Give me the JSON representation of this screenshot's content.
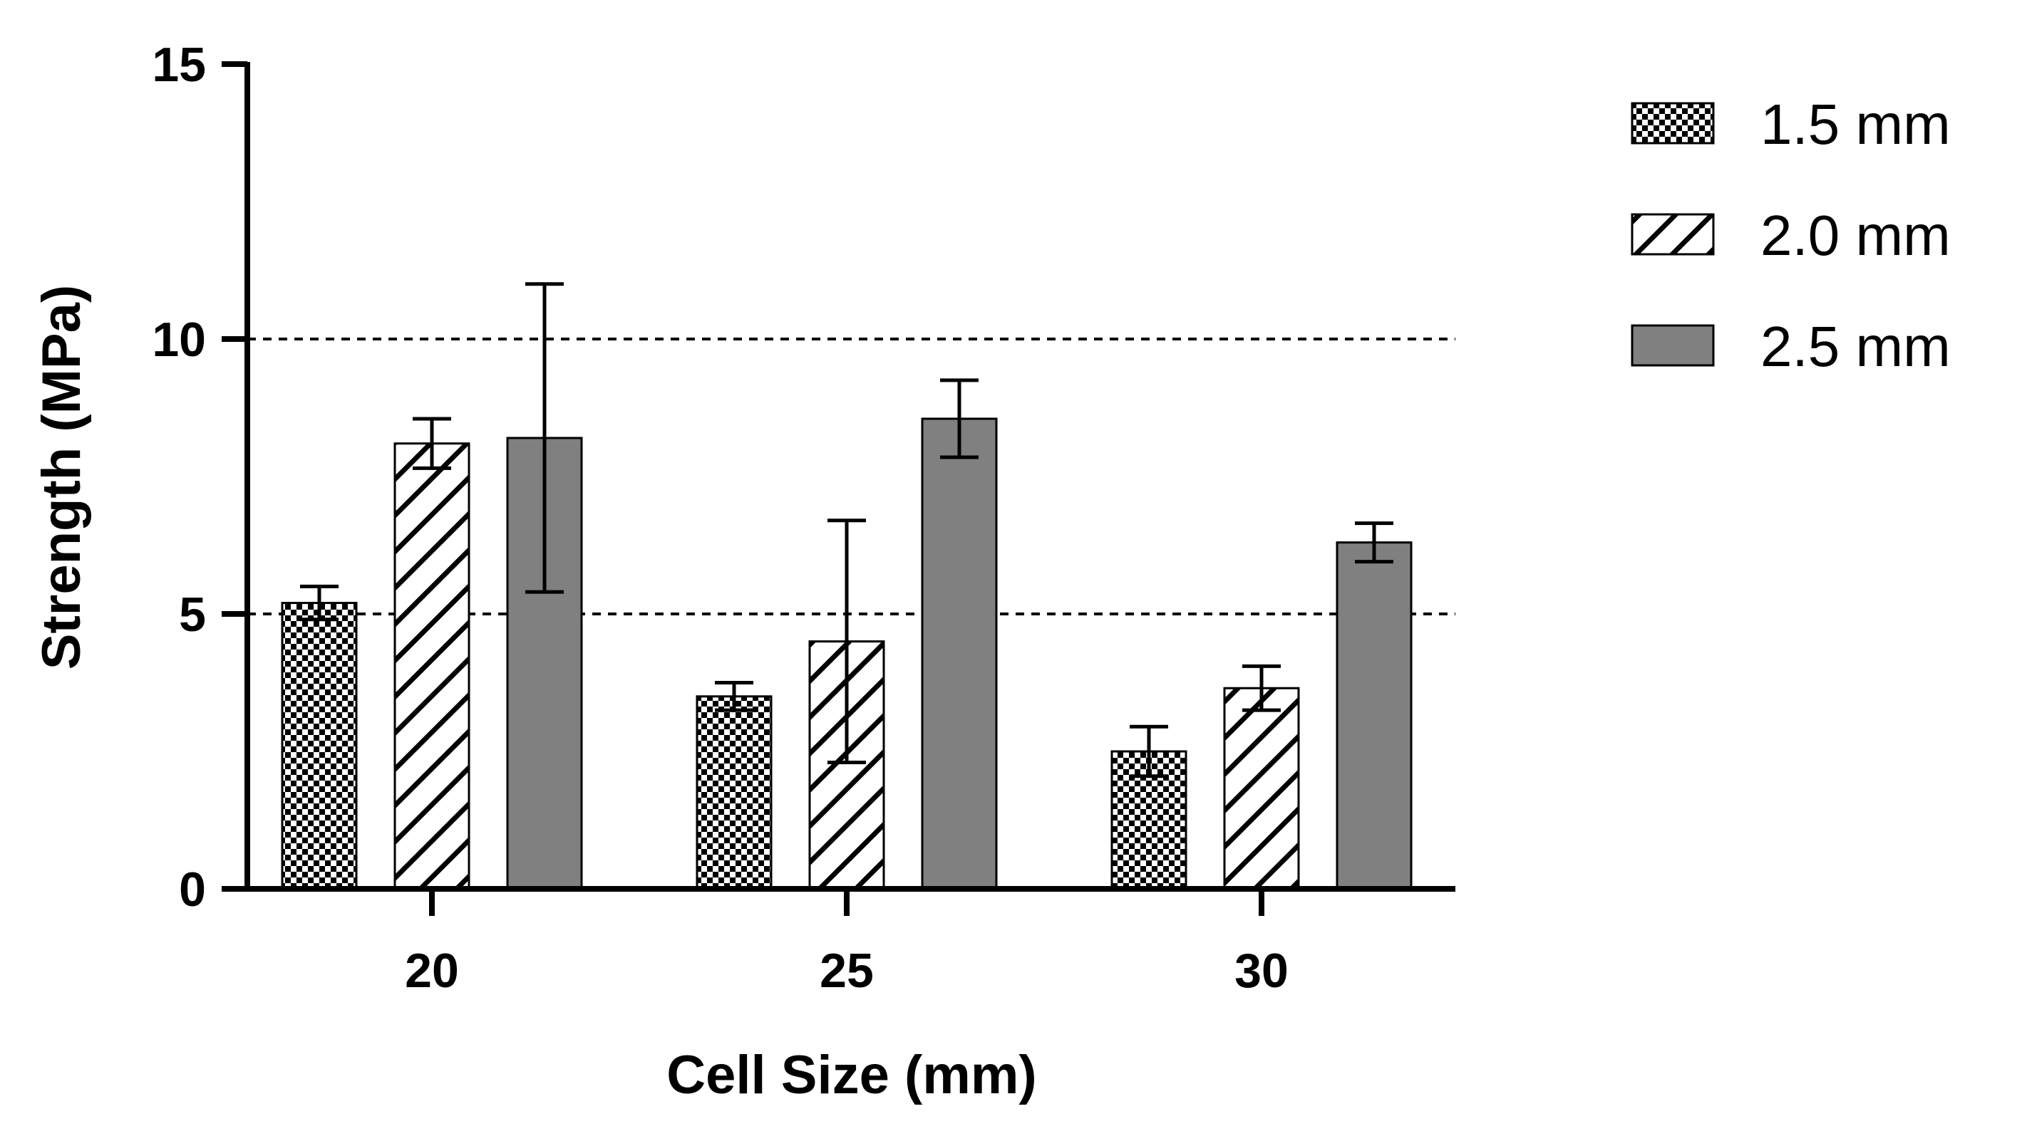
{
  "chart_data": {
    "type": "bar",
    "title": "",
    "xlabel": "Cell Size (mm)",
    "ylabel": "Strength (MPa)",
    "categories": [
      "20",
      "25",
      "30"
    ],
    "ylim": [
      0,
      15
    ],
    "yticks": [
      "0",
      "5",
      "10",
      "15"
    ],
    "reference_lines": [
      5,
      10
    ],
    "legend_position": "top-right",
    "series": [
      {
        "name": "1.5 mm",
        "pattern": "checkered",
        "color": "#000000",
        "values": [
          5.2,
          3.5,
          2.5
        ],
        "errors": [
          0.3,
          0.25,
          0.45
        ]
      },
      {
        "name": "2.0 mm",
        "pattern": "diagonal-hatch",
        "color": "#000000",
        "values": [
          8.1,
          4.5,
          3.65
        ],
        "errors": [
          0.45,
          2.2,
          0.4
        ]
      },
      {
        "name": "2.5 mm",
        "pattern": "solid",
        "color": "#808080",
        "values": [
          8.2,
          8.55,
          6.3
        ],
        "errors": [
          2.8,
          0.7,
          0.35
        ]
      }
    ]
  }
}
